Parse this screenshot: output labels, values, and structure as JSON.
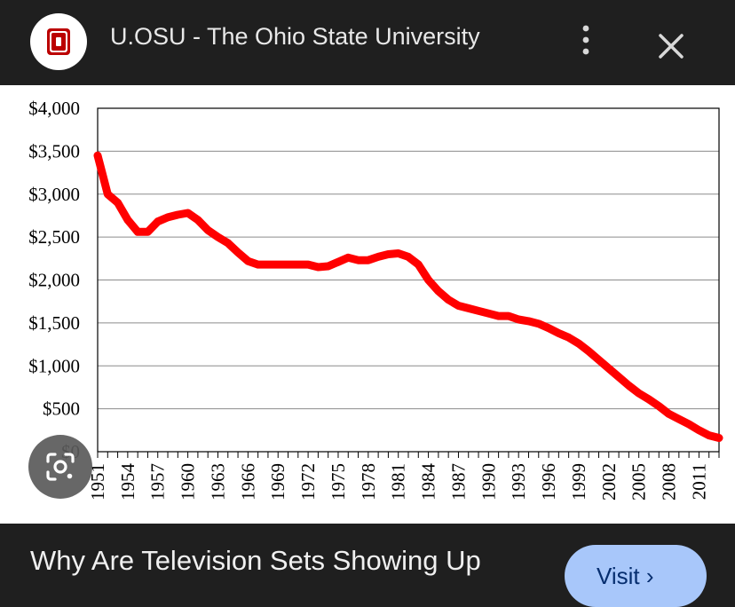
{
  "header": {
    "site_name": "U.OSU - The Ohio State University",
    "logo_icon": "ohio-state-block-o-logo",
    "more_icon": "more-vert-icon",
    "close_icon": "close-icon"
  },
  "chart_data": {
    "type": "line",
    "title": "",
    "xlabel": "",
    "ylabel": "",
    "ylim": [
      0,
      4000
    ],
    "y_ticks": [
      "$0",
      "$500",
      "$1,000",
      "$1,500",
      "$2,000",
      "$2,500",
      "$3,000",
      "$3,500",
      "$4,000"
    ],
    "x_tick_labels": [
      "1951",
      "1954",
      "1957",
      "1960",
      "1963",
      "1966",
      "1969",
      "1972",
      "1975",
      "1978",
      "1981",
      "1984",
      "1987",
      "1990",
      "1993",
      "1996",
      "1999",
      "2002",
      "2005",
      "2008",
      "2011"
    ],
    "grid": true,
    "line_color": "#ff0000",
    "series": [
      {
        "x": [
          1951,
          1952,
          1953,
          1954,
          1955,
          1956,
          1957,
          1958,
          1959,
          1960,
          1961,
          1962,
          1963,
          1964,
          1965,
          1966,
          1967,
          1968,
          1969,
          1970,
          1971,
          1972,
          1973,
          1974,
          1975,
          1976,
          1977,
          1978,
          1979,
          1980,
          1981,
          1982,
          1983,
          1984,
          1985,
          1986,
          1987,
          1988,
          1989,
          1990,
          1991,
          1992,
          1993,
          1994,
          1995,
          1996,
          1997,
          1998,
          1999,
          2000,
          2001,
          2002,
          2003,
          2004,
          2005,
          2006,
          2007,
          2008,
          2009,
          2010,
          2011,
          2012,
          2013
        ],
        "values": [
          3450,
          3000,
          2900,
          2700,
          2560,
          2560,
          2680,
          2730,
          2760,
          2780,
          2700,
          2580,
          2500,
          2430,
          2320,
          2220,
          2180,
          2180,
          2180,
          2180,
          2180,
          2180,
          2150,
          2160,
          2210,
          2260,
          2230,
          2230,
          2270,
          2300,
          2310,
          2270,
          2180,
          2000,
          1870,
          1770,
          1700,
          1670,
          1640,
          1610,
          1580,
          1580,
          1540,
          1520,
          1490,
          1440,
          1380,
          1330,
          1260,
          1170,
          1070,
          970,
          870,
          770,
          680,
          610,
          530,
          440,
          380,
          320,
          250,
          190,
          160
        ]
      }
    ]
  },
  "lens_button": {
    "icon": "google-lens-icon"
  },
  "caption": {
    "text": "Why Are Television Sets Showing Up",
    "visit_label": "Visit ›"
  }
}
